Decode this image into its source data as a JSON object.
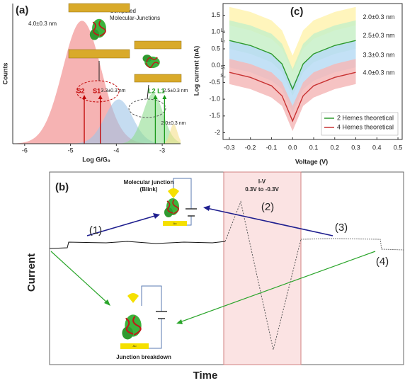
{
  "chart_data": [
    {
      "type": "area",
      "panel_label": "(a)",
      "x_label": "Log G/G₀",
      "y_label": "Counts",
      "xlim": [
        -6.26,
        -2.6
      ],
      "ylim": [
        0,
        1.14
      ],
      "xticks": [
        -6,
        -5,
        -4,
        -3
      ],
      "series": [
        {
          "name": "4.0±0.3 nm",
          "color": "#f08080",
          "center": -4.75,
          "sigma": 0.42,
          "height": 1.0
        },
        {
          "name": "3.3±0.3 nm",
          "color": "#9ec5e8",
          "center": -3.95,
          "sigma": 0.3,
          "height": 0.36
        },
        {
          "name": "2.5±0.3 nm",
          "color": "#8fdc8f",
          "center": -3.2,
          "sigma": 0.22,
          "height": 0.41
        },
        {
          "name": "2.0±0.3 nm",
          "color": "#f5e08a",
          "center": -2.75,
          "sigma": 0.08,
          "height": 0.16
        }
      ],
      "arrows": [
        {
          "label": "S2",
          "x": -4.7,
          "color": "#c00000"
        },
        {
          "label": "S1",
          "x": -4.35,
          "color": "#c00000"
        },
        {
          "label": "L2",
          "x": -3.15,
          "color": "#1a9a1a"
        },
        {
          "label": "L1",
          "x": -2.95,
          "color": "#1a9a1a"
        }
      ],
      "annotation": [
        "Computed",
        "Molecular-Junctions"
      ]
    },
    {
      "type": "line",
      "panel_label": "(c)",
      "x_label": "Voltage (V)",
      "y_label": "Log current (nA)",
      "xlim": [
        -0.33,
        0.52
      ],
      "ylim": [
        -2.2,
        1.85
      ],
      "xticks": [
        -0.3,
        -0.2,
        -0.1,
        {
          "value": 0,
          "label": "0.0"
        },
        0.1,
        0.2,
        0.3,
        0.4,
        0.5
      ],
      "yticks": [
        -2,
        -1.5,
        {
          "value": -1,
          "label": "-1.0"
        },
        -0.5,
        {
          "value": 0,
          "label": "0.0"
        },
        0.5,
        {
          "value": 1,
          "label": "1.0"
        },
        1.5
      ],
      "x": [
        -0.3,
        -0.2,
        -0.1,
        -0.05,
        0,
        0.05,
        0.1,
        0.2,
        0.3
      ],
      "bands": [
        {
          "name": "2.0±0.3 nm",
          "color": "#fff3b0",
          "upper": [
            1.75,
            1.6,
            1.35,
            1.05,
            0.3,
            1.05,
            1.35,
            1.6,
            1.75
          ],
          "lower": [
            1.2,
            1.05,
            0.8,
            0.5,
            -0.2,
            0.5,
            0.8,
            1.05,
            1.2
          ]
        },
        {
          "name": "2.5±0.3 nm",
          "color": "#c8f0c8",
          "upper": [
            1.35,
            1.2,
            0.95,
            0.65,
            -0.1,
            0.65,
            0.95,
            1.2,
            1.35
          ],
          "lower": [
            0.5,
            0.35,
            0.1,
            -0.2,
            -0.9,
            -0.2,
            0.1,
            0.35,
            0.5
          ]
        },
        {
          "name": "3.3±0.3 nm",
          "color": "#b8dcf5",
          "upper": [
            0.75,
            0.6,
            0.35,
            0.05,
            -0.6,
            0.05,
            0.35,
            0.6,
            0.75
          ],
          "lower": [
            -0.05,
            -0.2,
            -0.45,
            -0.7,
            -1.4,
            -0.7,
            -0.45,
            -0.2,
            -0.05
          ]
        },
        {
          "name": "4.0±0.3 nm",
          "color": "#f5b8b8",
          "upper": [
            0.2,
            0.05,
            -0.2,
            -0.5,
            -1.2,
            -0.5,
            -0.2,
            0.05,
            0.2
          ],
          "lower": [
            -0.55,
            -0.7,
            -0.95,
            -1.2,
            -1.95,
            -1.2,
            -0.95,
            -0.7,
            -0.55
          ]
        }
      ],
      "series": [
        {
          "name": "2 Hemes theoretical",
          "color": "#2e9a2e",
          "values": [
            0.75,
            0.6,
            0.35,
            0.05,
            -0.7,
            0.05,
            0.35,
            0.6,
            0.75
          ]
        },
        {
          "name": "4 Hemes theoretical",
          "color": "#c83232",
          "values": [
            -0.2,
            -0.35,
            -0.6,
            -0.9,
            -1.65,
            -0.9,
            -0.6,
            -0.35,
            -0.2
          ]
        }
      ],
      "annotations": [
        {
          "text": "L₁",
          "x": -0.33,
          "y": 1.05
        },
        {
          "text": "L₂",
          "x": -0.33,
          "y": 0.75
        },
        {
          "text": "S₁",
          "x": -0.33,
          "y": -0.05
        },
        {
          "text": "S₂",
          "x": -0.33,
          "y": -0.3
        }
      ],
      "legend": "lower right"
    }
  ],
  "diagram": {
    "panel_label": "(b)",
    "y_label": "Current",
    "x_label": "Time",
    "junction_label": [
      "Molecular junction",
      "(Blink)"
    ],
    "iv_label": [
      "I-V",
      "0.3V to -0.3V"
    ],
    "steps": [
      "(1)",
      "(2)",
      "(3)",
      "(4)"
    ],
    "breakdown_label": "Junction breakdown",
    "electrode_label": "Au"
  }
}
